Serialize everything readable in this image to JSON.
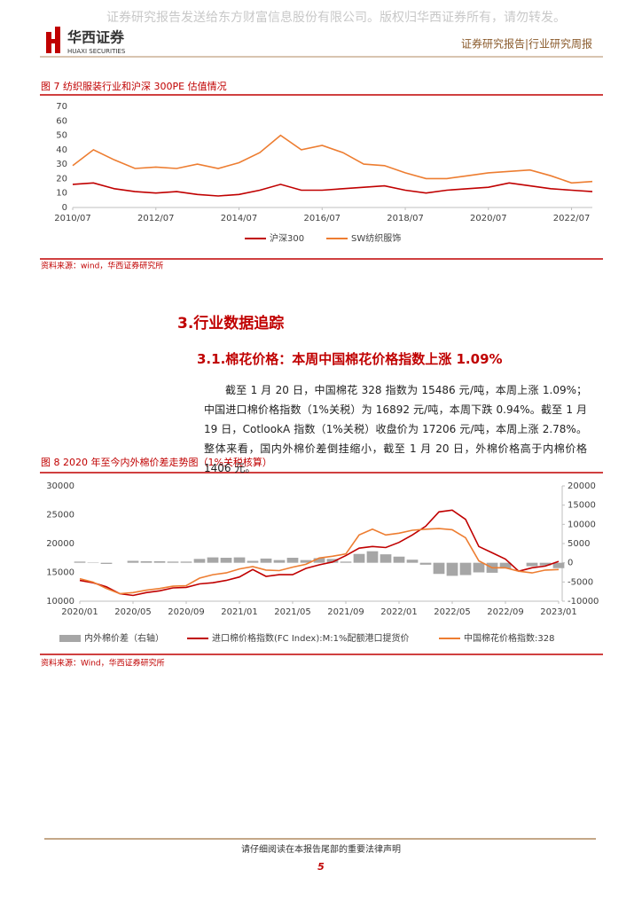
{
  "header": {
    "watermark": "证券研究报告发送给东方财富信息股份有限公司。版权归华西证券所有，请勿转发。",
    "logo_cn": "华西证券",
    "logo_en": "HUAXI SECURITIES",
    "section": "证券研究报告|行业研究周报"
  },
  "figure7": {
    "caption": "图 7  纺织服装行业和沪深 300PE 估值情况",
    "source": "资料来源：wind，华西证券研究所",
    "chart_data": {
      "type": "line",
      "x": [
        "2010/07",
        "2011/01",
        "2011/07",
        "2012/01",
        "2012/07",
        "2013/01",
        "2013/07",
        "2014/01",
        "2014/07",
        "2015/01",
        "2015/07",
        "2016/01",
        "2016/07",
        "2017/01",
        "2017/07",
        "2018/01",
        "2018/07",
        "2019/01",
        "2019/07",
        "2020/01",
        "2020/07",
        "2021/01",
        "2021/07",
        "2022/01",
        "2022/07",
        "2023/01"
      ],
      "xticks": [
        "2010/07",
        "2012/07",
        "2014/07",
        "2016/07",
        "2018/07",
        "2020/07",
        "2022/07"
      ],
      "ylim": [
        0,
        70
      ],
      "yticks": [
        0,
        10,
        20,
        30,
        40,
        50,
        60,
        70
      ],
      "grid": false,
      "legend": "bottom",
      "series": [
        {
          "name": "沪深300",
          "color": "#c00000",
          "values": [
            16,
            17,
            13,
            11,
            10,
            11,
            9,
            8,
            9,
            12,
            16,
            12,
            12,
            13,
            14,
            15,
            12,
            10,
            12,
            13,
            14,
            17,
            15,
            13,
            12,
            11
          ]
        },
        {
          "name": "SW纺织服饰",
          "color": "#ed7d31",
          "values": [
            29,
            40,
            33,
            27,
            28,
            27,
            30,
            27,
            31,
            38,
            50,
            40,
            43,
            38,
            30,
            29,
            24,
            20,
            20,
            22,
            24,
            25,
            26,
            22,
            17,
            18
          ]
        }
      ]
    }
  },
  "heading1": "3.行业数据追踪",
  "heading2": "3.1.棉花价格：本周中国棉花价格指数上涨 1.09%",
  "paragraph": "截至 1 月 20 日，中国棉花 328 指数为 15486 元/吨，本周上涨 1.09%；中国进口棉价格指数（1%关税）为 16892 元/吨，本周下跌 0.94%。截至 1 月 19 日，CotlookA 指数（1%关税）收盘价为 17206 元/吨，本周上涨 2.78%。整体来看，国内外棉价差倒挂缩小，截至 1 月 20 日，外棉价格高于内棉价格 1406 元。",
  "figure8": {
    "caption": "图 8  2020 年至今内外棉价差走势图（1%关税核算）",
    "source": "资料来源：Wind，华西证券研究所",
    "chart_data": {
      "type": "line",
      "x": [
        "2020/01",
        "2020/02",
        "2020/03",
        "2020/04",
        "2020/05",
        "2020/06",
        "2020/07",
        "2020/08",
        "2020/09",
        "2020/10",
        "2020/11",
        "2020/12",
        "2021/01",
        "2021/02",
        "2021/03",
        "2021/04",
        "2021/05",
        "2021/06",
        "2021/07",
        "2021/08",
        "2021/09",
        "2021/10",
        "2021/11",
        "2021/12",
        "2022/01",
        "2022/02",
        "2022/03",
        "2022/04",
        "2022/05",
        "2022/06",
        "2022/07",
        "2022/08",
        "2022/09",
        "2022/10",
        "2022/11",
        "2022/12",
        "2023/01"
      ],
      "xticks": [
        "2020/01",
        "2020/05",
        "2020/09",
        "2021/01",
        "2021/05",
        "2021/09",
        "2022/01",
        "2022/05",
        "2022/09",
        "2023/01"
      ],
      "ylim": [
        10000,
        30000
      ],
      "yticks": [
        10000,
        15000,
        20000,
        25000,
        30000
      ],
      "y2lim": [
        -10000,
        20000
      ],
      "y2ticks": [
        -10000,
        -5000,
        0,
        5000,
        10000,
        15000,
        20000
      ],
      "grid": false,
      "legend": "bottom",
      "series": [
        {
          "name": "内外棉价差（右轴）",
          "type": "bar",
          "axis": "y2",
          "color": "#a6a6a6",
          "values": [
            300,
            100,
            -300,
            0,
            500,
            400,
            400,
            300,
            300,
            1000,
            1400,
            1300,
            1400,
            500,
            1100,
            700,
            1300,
            700,
            1200,
            1000,
            300,
            2300,
            3000,
            2200,
            1600,
            800,
            -500,
            -2900,
            -3400,
            -3200,
            -2500,
            -2600,
            -1500,
            0,
            -900,
            -700,
            -1400
          ]
        },
        {
          "name": "进口棉价格指数(FC Index):M:1%配额港口提货价",
          "color": "#c00000",
          "values": [
            13600,
            13200,
            12500,
            11300,
            11000,
            11500,
            11800,
            12300,
            12400,
            13000,
            13200,
            13600,
            14200,
            15500,
            14300,
            14600,
            14600,
            15700,
            16300,
            16800,
            17900,
            19200,
            19500,
            19300,
            20200,
            21500,
            23000,
            25500,
            25800,
            24200,
            19500,
            18400,
            17300,
            15200,
            15800,
            16100,
            16900
          ]
        },
        {
          "name": "中国棉花价格指数:328",
          "color": "#ed7d31",
          "values": [
            13900,
            13300,
            12200,
            11300,
            11500,
            11900,
            12200,
            12600,
            12700,
            14000,
            14600,
            14900,
            15600,
            16000,
            15400,
            15300,
            15900,
            16400,
            17500,
            17800,
            18200,
            21500,
            22500,
            21500,
            21800,
            22300,
            22500,
            22600,
            22400,
            21000,
            17000,
            15800,
            15800,
            15200,
            14900,
            15400,
            15500
          ]
        }
      ]
    }
  },
  "footer": {
    "notice": "请仔细阅读在本报告尾部的重要法律声明",
    "page": "5"
  }
}
